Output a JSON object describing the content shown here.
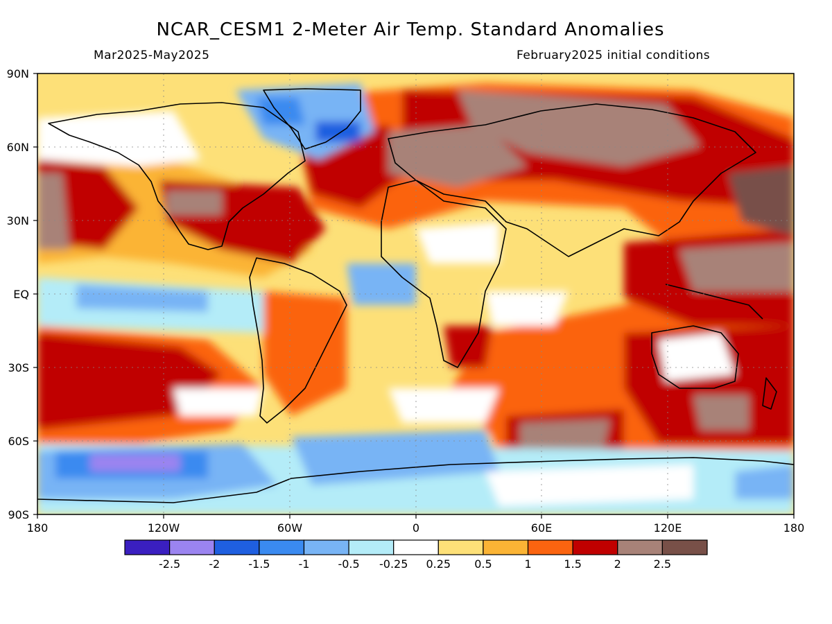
{
  "title": "NCAR_CESM1 2-Meter Air Temp. Standard Anomalies",
  "period": "Mar2025-May2025",
  "initial_conditions": "February2025 initial conditions",
  "y_axis_labels": [
    "90N",
    "60N",
    "30N",
    "EQ",
    "30S",
    "60S",
    "90S"
  ],
  "x_axis_labels": [
    "180",
    "120W",
    "60W",
    "0",
    "60E",
    "120E",
    "180"
  ],
  "colorbar": {
    "colors": [
      "#3a1fc0",
      "#9b84f0",
      "#1f5fe0",
      "#3a8af0",
      "#78b4f5",
      "#b4ecf8",
      "#ffffff",
      "#fde078",
      "#fbb435",
      "#fb6410",
      "#c00000",
      "#a88278",
      "#785048"
    ],
    "labels": [
      "-2.5",
      "-2",
      "-1.5",
      "-1",
      "-0.5",
      "-0.25",
      "0.25",
      "0.5",
      "1",
      "1.5",
      "2",
      "2.5"
    ]
  }
}
